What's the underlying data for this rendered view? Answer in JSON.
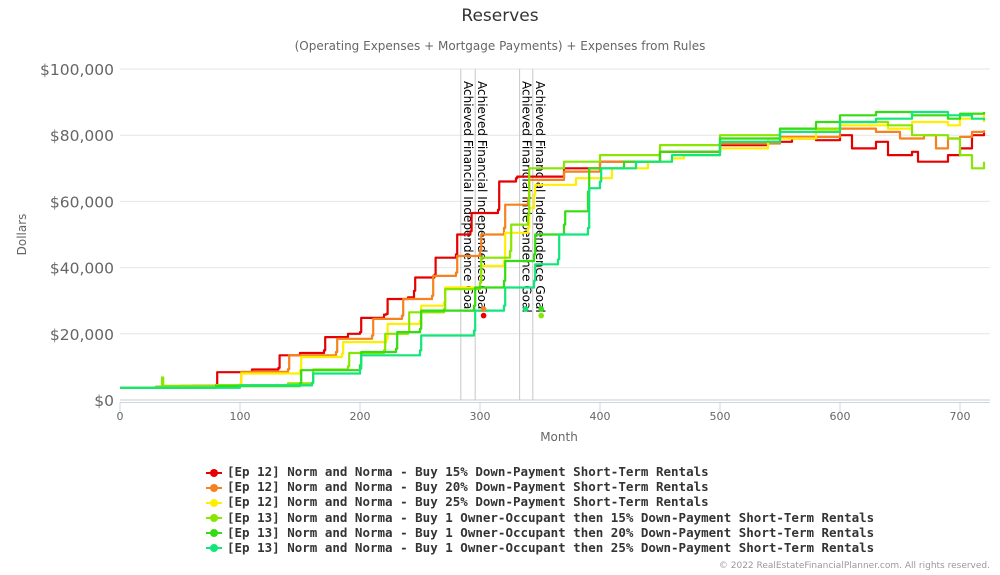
{
  "chart_data": {
    "type": "line",
    "title": "Reserves",
    "subtitle": "(Operating Expenses + Mortgage Payments) + Expenses from Rules",
    "xlabel": "Month",
    "ylabel": "Dollars",
    "xlim": [
      0,
      725
    ],
    "ylim": [
      0,
      100000
    ],
    "x_ticks": [
      0,
      100,
      200,
      300,
      400,
      500,
      600,
      700
    ],
    "x_tick_labels": [
      "0",
      "100",
      "200",
      "300",
      "400",
      "500",
      "600",
      "700"
    ],
    "y_ticks": [
      0,
      20000,
      40000,
      60000,
      80000,
      100000
    ],
    "y_tick_labels": [
      "$0",
      "$20,000",
      "$40,000",
      "$60,000",
      "$80,000",
      "$100,000"
    ],
    "grid": "horizontal",
    "legend_position": "bottom",
    "plot_lines": [
      {
        "x": 284,
        "label": "Achieved Financial Independence Goal"
      },
      {
        "x": 296,
        "label": "Achieved Financial Independence Goal"
      },
      {
        "x": 333,
        "label": "Achieved Financial Independence Goal"
      },
      {
        "x": 344,
        "label": "Achieved Financial Independence Goal"
      }
    ],
    "series": [
      {
        "name": "[Ep 12] Norm and Norma - Buy 15% Down-Payment Short-Term Rentals",
        "color": "#e60000",
        "points": [
          [
            0,
            3700
          ],
          [
            30,
            4000
          ],
          [
            60,
            4300
          ],
          [
            80,
            4600
          ],
          [
            81,
            8400
          ],
          [
            110,
            9200
          ],
          [
            132,
            9700
          ],
          [
            133,
            13500
          ],
          [
            150,
            14200
          ],
          [
            170,
            15000
          ],
          [
            171,
            19000
          ],
          [
            190,
            20000
          ],
          [
            200,
            20500
          ],
          [
            201,
            24800
          ],
          [
            220,
            25800
          ],
          [
            222,
            26000
          ],
          [
            223,
            30500
          ],
          [
            240,
            31000
          ],
          [
            245,
            33000
          ],
          [
            246,
            37000
          ],
          [
            262,
            37800
          ],
          [
            263,
            43000
          ],
          [
            280,
            44000
          ],
          [
            281,
            50000
          ],
          [
            292,
            51000
          ],
          [
            293,
            56500
          ],
          [
            315,
            57500
          ],
          [
            316,
            66000
          ],
          [
            330,
            67000
          ],
          [
            331,
            67500
          ],
          [
            370,
            70000
          ],
          [
            400,
            72000
          ],
          [
            450,
            75000
          ],
          [
            500,
            77000
          ],
          [
            540,
            78000
          ],
          [
            560,
            79000
          ],
          [
            580,
            78500
          ],
          [
            600,
            80000
          ],
          [
            610,
            76000
          ],
          [
            630,
            78000
          ],
          [
            640,
            74000
          ],
          [
            660,
            75000
          ],
          [
            665,
            72000
          ],
          [
            690,
            74000
          ],
          [
            700,
            76000
          ],
          [
            710,
            80000
          ],
          [
            720,
            81000
          ]
        ],
        "markers": [
          [
            303,
            25500
          ]
        ]
      },
      {
        "name": "[Ep 12] Norm and Norma - Buy 20% Down-Payment Short-Term Rentals",
        "color": "#f5821f",
        "points": [
          [
            0,
            3700
          ],
          [
            50,
            4300
          ],
          [
            100,
            4700
          ],
          [
            101,
            8500
          ],
          [
            140,
            9300
          ],
          [
            141,
            13500
          ],
          [
            180,
            14500
          ],
          [
            181,
            18500
          ],
          [
            210,
            19500
          ],
          [
            211,
            24500
          ],
          [
            235,
            25500
          ],
          [
            236,
            30500
          ],
          [
            260,
            31500
          ],
          [
            261,
            37500
          ],
          [
            280,
            38500
          ],
          [
            281,
            43500
          ],
          [
            300,
            45000
          ],
          [
            301,
            50000
          ],
          [
            320,
            52000
          ],
          [
            321,
            59000
          ],
          [
            340,
            61000
          ],
          [
            341,
            66500
          ],
          [
            370,
            69000
          ],
          [
            400,
            72000
          ],
          [
            450,
            75000
          ],
          [
            500,
            77500
          ],
          [
            550,
            79500
          ],
          [
            600,
            82000
          ],
          [
            630,
            81000
          ],
          [
            650,
            79000
          ],
          [
            670,
            80000
          ],
          [
            680,
            76000
          ],
          [
            690,
            79000
          ],
          [
            700,
            79500
          ],
          [
            710,
            81000
          ],
          [
            720,
            81500
          ]
        ],
        "markers": [
          [
            303,
            27500
          ]
        ]
      },
      {
        "name": "[Ep 12] Norm and Norma - Buy 25% Down-Payment Short-Term Rentals",
        "color": "#ffee00",
        "points": [
          [
            0,
            3700
          ],
          [
            60,
            4200
          ],
          [
            100,
            4800
          ],
          [
            101,
            8000
          ],
          [
            150,
            9000
          ],
          [
            151,
            13000
          ],
          [
            185,
            14000
          ],
          [
            186,
            17500
          ],
          [
            222,
            18500
          ],
          [
            223,
            23000
          ],
          [
            250,
            24000
          ],
          [
            251,
            28500
          ],
          [
            270,
            29500
          ],
          [
            271,
            34000
          ],
          [
            300,
            35500
          ],
          [
            301,
            40500
          ],
          [
            320,
            42000
          ],
          [
            321,
            50500
          ],
          [
            340,
            52000
          ],
          [
            341,
            58000
          ],
          [
            345,
            62000
          ],
          [
            346,
            65000
          ],
          [
            380,
            67000
          ],
          [
            410,
            70000
          ],
          [
            440,
            72000
          ],
          [
            460,
            73000
          ],
          [
            470,
            74000
          ],
          [
            500,
            76000
          ],
          [
            540,
            79000
          ],
          [
            580,
            81500
          ],
          [
            600,
            83000
          ],
          [
            640,
            82000
          ],
          [
            660,
            84000
          ],
          [
            690,
            83000
          ],
          [
            700,
            85000
          ],
          [
            710,
            86500
          ],
          [
            720,
            84000
          ]
        ],
        "markers": []
      },
      {
        "name": "[Ep 13] Norm and Norma - Buy 1 Owner-Occupant then 15% Down-Payment Short-Term Rentals",
        "color": "#88e600",
        "points": [
          [
            0,
            3700
          ],
          [
            30,
            4000
          ],
          [
            35,
            6800
          ],
          [
            36,
            4300
          ],
          [
            80,
            4500
          ],
          [
            140,
            5000
          ],
          [
            160,
            5200
          ],
          [
            161,
            9200
          ],
          [
            190,
            10200
          ],
          [
            191,
            14200
          ],
          [
            220,
            15000
          ],
          [
            221,
            20000
          ],
          [
            240,
            20500
          ],
          [
            241,
            26500
          ],
          [
            270,
            27500
          ],
          [
            271,
            33500
          ],
          [
            300,
            35500
          ],
          [
            301,
            43000
          ],
          [
            325,
            45000
          ],
          [
            326,
            53000
          ],
          [
            340,
            56000
          ],
          [
            341,
            70000
          ],
          [
            370,
            72000
          ],
          [
            400,
            74000
          ],
          [
            450,
            77000
          ],
          [
            500,
            80000
          ],
          [
            550,
            82000
          ],
          [
            600,
            84000
          ],
          [
            640,
            83000
          ],
          [
            660,
            80000
          ],
          [
            690,
            79000
          ],
          [
            700,
            74000
          ],
          [
            710,
            70000
          ],
          [
            720,
            72000
          ]
        ],
        "markers": [
          [
            351,
            25500
          ]
        ]
      },
      {
        "name": "[Ep 13] Norm and Norma - Buy 1 Owner-Occupant then 20% Down-Payment Short-Term Rentals",
        "color": "#33dd11",
        "points": [
          [
            0,
            3700
          ],
          [
            80,
            4200
          ],
          [
            150,
            5100
          ],
          [
            151,
            9000
          ],
          [
            200,
            10500
          ],
          [
            201,
            14500
          ],
          [
            230,
            15500
          ],
          [
            231,
            20500
          ],
          [
            250,
            21500
          ],
          [
            251,
            27000
          ],
          [
            295,
            28500
          ],
          [
            296,
            34000
          ],
          [
            320,
            36000
          ],
          [
            321,
            42000
          ],
          [
            345,
            44000
          ],
          [
            346,
            50000
          ],
          [
            370,
            53000
          ],
          [
            371,
            57000
          ],
          [
            390,
            63000
          ],
          [
            391,
            70000
          ],
          [
            420,
            72000
          ],
          [
            450,
            75000
          ],
          [
            500,
            79000
          ],
          [
            550,
            82000
          ],
          [
            580,
            84000
          ],
          [
            600,
            86000
          ],
          [
            630,
            87000
          ],
          [
            660,
            86000
          ],
          [
            690,
            85000
          ],
          [
            700,
            86500
          ],
          [
            720,
            87000
          ]
        ],
        "markers": [
          [
            351,
            27500
          ]
        ]
      },
      {
        "name": "[Ep 13] Norm and Norma - Buy 1 Owner-Occupant then 25% Down-Payment Short-Term Rentals",
        "color": "#11e67a",
        "points": [
          [
            0,
            3700
          ],
          [
            100,
            4400
          ],
          [
            160,
            5200
          ],
          [
            161,
            8000
          ],
          [
            200,
            9500
          ],
          [
            201,
            13500
          ],
          [
            250,
            15000
          ],
          [
            251,
            19500
          ],
          [
            295,
            21000
          ],
          [
            296,
            27000
          ],
          [
            320,
            28500
          ],
          [
            321,
            34000
          ],
          [
            345,
            36000
          ],
          [
            346,
            41000
          ],
          [
            365,
            42500
          ],
          [
            366,
            50000
          ],
          [
            390,
            52000
          ],
          [
            391,
            64000
          ],
          [
            400,
            66000
          ],
          [
            401,
            70000
          ],
          [
            430,
            72000
          ],
          [
            460,
            74000
          ],
          [
            500,
            78000
          ],
          [
            550,
            81000
          ],
          [
            600,
            84000
          ],
          [
            630,
            85000
          ],
          [
            660,
            87000
          ],
          [
            690,
            86000
          ],
          [
            710,
            85000
          ],
          [
            720,
            84500
          ]
        ],
        "markers": [
          [
            338,
            27500
          ]
        ]
      }
    ]
  },
  "credits": "© 2022 RealEstateFinancialPlanner.com. All rights reserved."
}
